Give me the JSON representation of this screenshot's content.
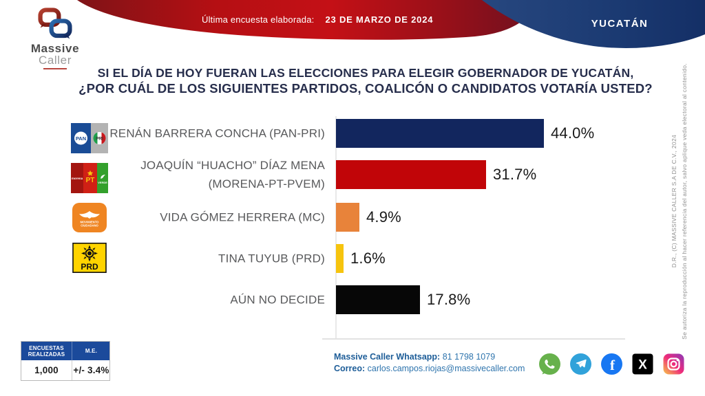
{
  "header": {
    "banner_label": "Última encuesta elaborada:",
    "banner_date": "23 DE MARZO DE 2024",
    "state_badge": "YUCATÁN",
    "logo_line1": "Massive",
    "logo_line2": "Caller"
  },
  "title": {
    "line1": "SI EL DÍA DE HOY FUERAN LAS ELECCIONES PARA ELEGIR GOBERNADOR DE YUCATÁN,",
    "line2": "¿POR CUÁL DE LOS SIGUIENTES PARTIDOS, COALICÓN O CANDIDATOS VOTARÍA USTED?"
  },
  "chart_data": {
    "type": "bar",
    "orientation": "horizontal",
    "title": "SI EL DÍA DE HOY FUERAN LAS ELECCIONES PARA ELEGIR GOBERNADOR DE YUCATÁN, ¿POR CUÁL DE LOS SIGUIENTES PARTIDOS, COALICÓN O CANDIDATOS VOTARÍA USTED?",
    "categories": [
      "RENÁN BARRERA CONCHA (PAN-PRI)",
      "JOAQUÍN “HUACHO” DÍAZ MENA (MORENA-PT-PVEM)",
      "VIDA GÓMEZ HERRERA (MC)",
      "TINA TUYUB (PRD)",
      "AÚN NO DECIDE"
    ],
    "values": [
      44.0,
      31.7,
      4.9,
      1.6,
      17.8
    ],
    "xlim": [
      0,
      46
    ],
    "grid": false,
    "legend": false,
    "items": [
      {
        "lines": [
          "RENÁN BARRERA CONCHA  (PAN-PRI)"
        ],
        "value": 44.0,
        "label": "44.0%",
        "color": "#12265e",
        "logo": "pan-pri"
      },
      {
        "lines": [
          "JOAQUÍN “HUACHO” DÍAZ MENA",
          "(MORENA-PT-PVEM)"
        ],
        "value": 31.7,
        "label": "31.7%",
        "color": "#c10508",
        "logo": "morena-pt-pvem"
      },
      {
        "lines": [
          "VIDA GÓMEZ HERRERA (MC)"
        ],
        "value": 4.9,
        "label": "4.9%",
        "color": "#e8833a",
        "logo": "mc"
      },
      {
        "lines": [
          "TINA TUYUB (PRD)"
        ],
        "value": 1.6,
        "label": "1.6%",
        "color": "#f6c40e",
        "logo": "prd"
      },
      {
        "lines": [
          "AÚN NO DECIDE"
        ],
        "value": 17.8,
        "label": "17.8%",
        "color": "#070707",
        "logo": null
      }
    ]
  },
  "party_logos": {
    "pan_pri": {
      "pan": "PAN",
      "pri": "PRI"
    },
    "morena_pt_pvem": {
      "morena": "morena",
      "pt": "PT",
      "pvem": "VERDE"
    },
    "mc": {
      "text1": "MOVIMIENTO",
      "text2": "CIUDADANO"
    },
    "prd": {
      "text": "PRD"
    }
  },
  "stats_table": {
    "headers": [
      "ENCUESTAS REALIZADAS",
      "M.E."
    ],
    "row": [
      "1,000",
      "+/- 3.4%"
    ]
  },
  "contact": {
    "whatsapp_label": "Massive Caller Whatsapp:",
    "whatsapp_number": " 81 1798 1079",
    "email_label": "Correo:",
    "email": " carlos.campos.riojas@massivecaller.com"
  },
  "social": {
    "facebook_glyph": "f",
    "x_glyph": "X",
    "colors": {
      "whatsapp": "#67b14c",
      "telegram": "#31a2da",
      "facebook": "#1877f2",
      "x": "#000000",
      "instagram_gradient": [
        "#f7c948",
        "#ee2a7b",
        "#8a3ab9"
      ]
    }
  },
  "copyright": {
    "rights": "D.R., (C) MASSIVE CALLER S.A DE C.V., 2024",
    "notice": "Se autoriza la reproducción al hacer referencia del autor, salvo aplique veda electoral al contenido."
  }
}
